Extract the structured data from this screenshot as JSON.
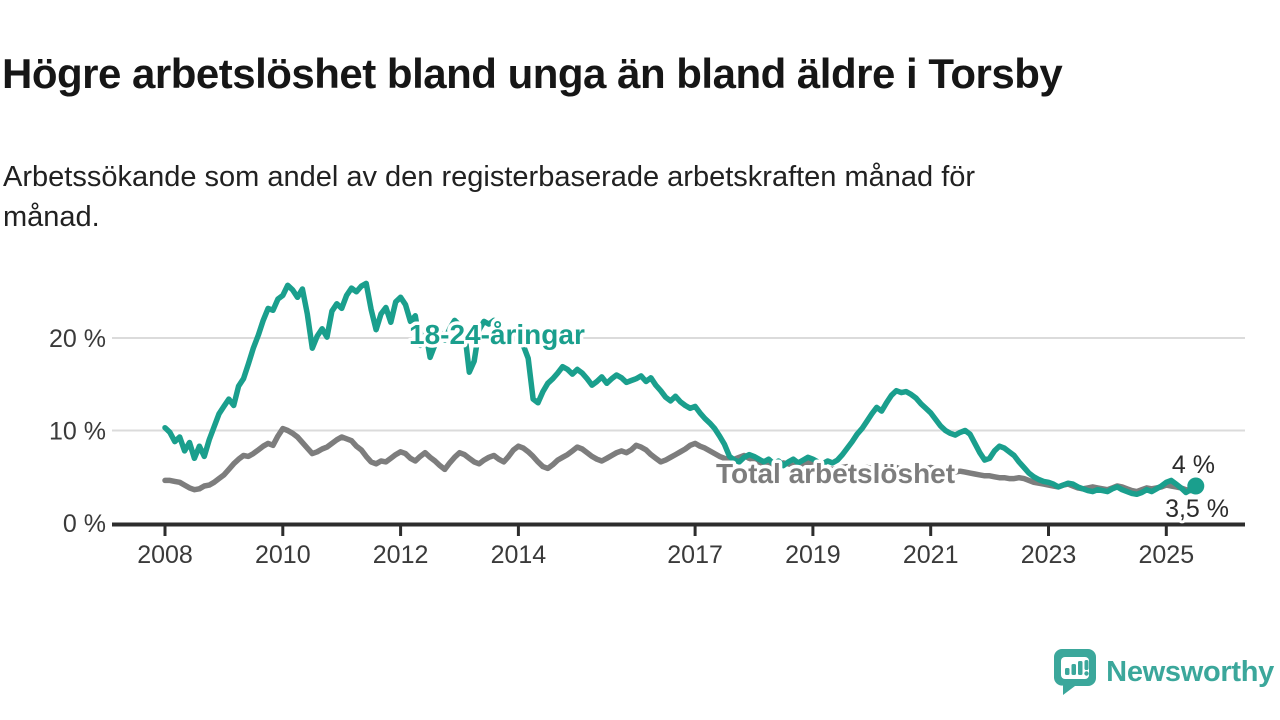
{
  "header": {
    "title": "Högre arbetslöshet bland unga än bland äldre i Torsby",
    "subtitle": "Arbetssökande som andel av den registerbaserade arbetskraften månad för månad."
  },
  "chart_data": {
    "type": "line",
    "title": "Högre arbetslöshet bland unga än bland äldre i Torsby",
    "subtitle": "Arbetssökande som andel av den registerbaserade arbetskraften månad för månad.",
    "unit": "%",
    "x_start_year": 2008,
    "points_per_year": 12,
    "x_end_label_note": "data ends mid 2025",
    "ylim": [
      0,
      27
    ],
    "grid": "horizontal",
    "yticks": [
      {
        "value": 0,
        "label": "0 %"
      },
      {
        "value": 10,
        "label": "10 %"
      },
      {
        "value": 20,
        "label": "20 %"
      }
    ],
    "xticks": [
      2008,
      2010,
      2012,
      2014,
      2017,
      2019,
      2021,
      2023,
      2025
    ],
    "colors": {
      "young": "#1A9F8D",
      "total": "#7D7D7D",
      "grid": "#DBDBDB",
      "axis": "#2D2D2D",
      "tick_text": "#3A3A3A",
      "end_label_text": "#2B2B2B",
      "logo": "#3BA79B"
    },
    "series": [
      {
        "name": "18-24-åringar",
        "label_text": "18-24-åringar",
        "end_label": "4 %",
        "end_value": 4.0,
        "color": "#1A9F8D",
        "values": [
          10.3,
          9.8,
          8.8,
          9.3,
          7.8,
          8.7,
          7.0,
          8.3,
          7.2,
          9.0,
          10.4,
          11.8,
          12.6,
          13.4,
          12.7,
          14.8,
          15.6,
          17.2,
          18.9,
          20.3,
          21.9,
          23.2,
          23.0,
          24.2,
          24.6,
          25.7,
          25.2,
          24.4,
          25.3,
          22.6,
          18.9,
          20.2,
          21.0,
          20.1,
          22.9,
          23.7,
          23.2,
          24.6,
          25.4,
          25.0,
          25.6,
          25.9,
          23.1,
          20.9,
          22.6,
          23.3,
          21.7,
          23.9,
          24.4,
          23.6,
          21.8,
          22.4,
          19.2,
          21.0,
          17.9,
          19.3,
          20.6,
          19.8,
          21.0,
          21.9,
          21.4,
          20.8,
          16.3,
          17.5,
          20.9,
          21.8,
          21.5,
          21.9,
          21.3,
          20.6,
          19.4,
          19.9,
          20.6,
          19.2,
          17.8,
          13.4,
          13.0,
          14.2,
          15.1,
          15.6,
          16.2,
          16.9,
          16.6,
          16.1,
          16.6,
          16.2,
          15.6,
          14.9,
          15.3,
          15.8,
          15.1,
          15.6,
          16.0,
          15.7,
          15.2,
          15.4,
          15.6,
          15.9,
          15.3,
          15.7,
          14.9,
          14.3,
          13.6,
          13.2,
          13.7,
          13.1,
          12.7,
          12.4,
          12.6,
          11.9,
          11.3,
          10.8,
          10.2,
          9.4,
          8.5,
          7.2,
          6.8,
          6.6,
          7.1,
          7.4,
          7.2,
          6.9,
          6.6,
          6.9,
          6.4,
          6.7,
          6.2,
          6.6,
          6.9,
          6.5,
          6.8,
          7.1,
          6.9,
          6.6,
          6.4,
          6.7,
          6.5,
          6.8,
          7.4,
          8.1,
          8.8,
          9.6,
          10.2,
          11.0,
          11.8,
          12.5,
          12.1,
          13.0,
          13.8,
          14.3,
          14.1,
          14.2,
          13.9,
          13.5,
          12.9,
          12.4,
          11.9,
          11.2,
          10.5,
          10.0,
          9.7,
          9.5,
          9.8,
          10.0,
          9.6,
          8.6,
          7.6,
          6.8,
          7.0,
          7.8,
          8.3,
          8.1,
          7.7,
          7.3,
          6.6,
          6.0,
          5.4,
          5.0,
          4.7,
          4.5,
          4.4,
          4.2,
          3.9,
          4.1,
          4.3,
          4.2,
          3.9,
          3.7,
          3.5,
          3.4,
          3.6,
          3.5,
          3.4,
          3.7,
          3.9,
          3.6,
          3.4,
          3.2,
          3.1,
          3.3,
          3.6,
          3.4,
          3.7,
          4.0,
          4.4,
          4.6,
          4.2,
          3.8,
          3.3,
          3.6,
          4.0
        ]
      },
      {
        "name": "Total arbetslöshet",
        "label_text": "Total arbetslöshet",
        "end_label": "3,5 %",
        "end_value": 3.5,
        "color": "#7D7D7D",
        "values": [
          4.6,
          4.6,
          4.5,
          4.4,
          4.1,
          3.8,
          3.6,
          3.7,
          4.0,
          4.1,
          4.4,
          4.8,
          5.2,
          5.8,
          6.4,
          6.9,
          7.3,
          7.2,
          7.5,
          7.9,
          8.3,
          8.6,
          8.4,
          9.4,
          10.2,
          10.0,
          9.7,
          9.3,
          8.7,
          8.1,
          7.5,
          7.7,
          8.0,
          8.2,
          8.6,
          9.0,
          9.3,
          9.1,
          8.9,
          8.3,
          7.9,
          7.2,
          6.6,
          6.4,
          6.7,
          6.6,
          7.0,
          7.4,
          7.7,
          7.5,
          7.0,
          6.7,
          7.2,
          7.6,
          7.1,
          6.7,
          6.2,
          5.8,
          6.5,
          7.1,
          7.6,
          7.4,
          7.0,
          6.6,
          6.4,
          6.8,
          7.1,
          7.3,
          6.9,
          6.6,
          7.2,
          7.9,
          8.3,
          8.1,
          7.7,
          7.2,
          6.6,
          6.1,
          5.9,
          6.3,
          6.8,
          7.1,
          7.4,
          7.8,
          8.2,
          8.0,
          7.6,
          7.2,
          6.9,
          6.7,
          7.0,
          7.3,
          7.6,
          7.8,
          7.6,
          7.9,
          8.4,
          8.2,
          7.9,
          7.4,
          7.0,
          6.6,
          6.8,
          7.1,
          7.4,
          7.7,
          8.0,
          8.4,
          8.6,
          8.3,
          8.1,
          7.8,
          7.5,
          7.2,
          7.0,
          6.8,
          6.9,
          7.1,
          7.3,
          7.0,
          6.8,
          6.6,
          6.4,
          6.2,
          6.1,
          6.3,
          6.5,
          6.4,
          6.2,
          6.1,
          6.3,
          6.5,
          6.4,
          6.2,
          6.0,
          5.9,
          5.8,
          5.9,
          6.0,
          6.1,
          5.9,
          5.8,
          5.9,
          6.0,
          5.9,
          5.8,
          5.7,
          5.8,
          5.9,
          6.0,
          5.8,
          5.7,
          5.6,
          5.7,
          5.8,
          5.9,
          6.0,
          5.9,
          5.8,
          5.7,
          5.6,
          5.5,
          5.6,
          5.5,
          5.4,
          5.3,
          5.2,
          5.1,
          5.1,
          5.0,
          4.9,
          4.9,
          4.8,
          4.8,
          4.9,
          4.8,
          4.6,
          4.4,
          4.3,
          4.2,
          4.1,
          4.0,
          3.9,
          4.1,
          4.2,
          4.0,
          3.8,
          3.7,
          3.8,
          3.9,
          3.8,
          3.7,
          3.6,
          3.8,
          4.0,
          3.9,
          3.7,
          3.5,
          3.4,
          3.6,
          3.8,
          3.7,
          3.8,
          3.9,
          4.1,
          4.0,
          3.9,
          3.8,
          3.6,
          3.5,
          3.5
        ]
      }
    ]
  },
  "footer": {
    "brand": "Newsworthy"
  }
}
